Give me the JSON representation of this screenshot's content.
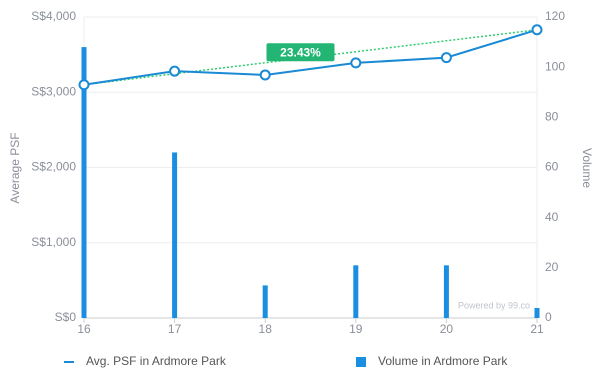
{
  "chart_data": {
    "type": "bar-line",
    "x": [
      16,
      17,
      18,
      19,
      20,
      21
    ],
    "series": [
      {
        "name": "Avg. PSF in Ardmore Park",
        "type": "line",
        "color": "#1a8ad4",
        "values": [
          3100,
          3280,
          3230,
          3390,
          3460,
          3830
        ]
      },
      {
        "name": "Volume in Ardmore Park",
        "type": "bar",
        "axis": "y2",
        "color": "#1a8ee0",
        "values": [
          108,
          66,
          13,
          21,
          21,
          4
        ]
      }
    ],
    "trendline": {
      "x": [
        16,
        21
      ],
      "values": [
        3100,
        3830
      ],
      "color": "#2ecc71",
      "label": "23.43%"
    },
    "xlim": [
      16,
      21
    ],
    "xticks": [
      16,
      17,
      18,
      19,
      20,
      21
    ],
    "ylim": [
      0,
      4000
    ],
    "yticks": [
      {
        "value": 0,
        "label": "S$0"
      },
      {
        "value": 1000,
        "label": "S$1,000"
      },
      {
        "value": 2000,
        "label": "S$2,000"
      },
      {
        "value": 3000,
        "label": "S$3,000"
      },
      {
        "value": 4000,
        "label": "S$4,000"
      }
    ],
    "y2lim": [
      0,
      120
    ],
    "y2ticks": [
      0,
      20,
      40,
      60,
      80,
      100,
      120
    ],
    "ylabel": "Average PSF",
    "y2label": "Volume",
    "watermark": "Powered by 99.co",
    "grid": true
  }
}
